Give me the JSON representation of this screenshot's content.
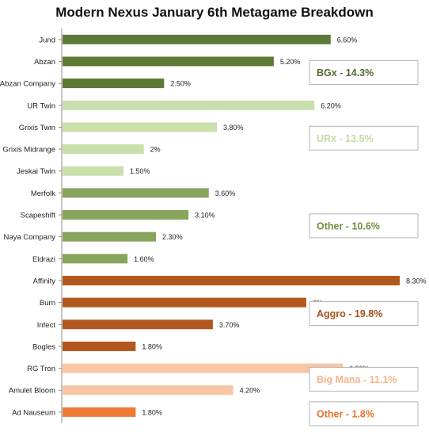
{
  "chart_data": {
    "type": "bar",
    "orientation": "horizontal",
    "title": "Modern Nexus January 6th Metagame Breakdown",
    "xlabel": "",
    "ylabel": "",
    "xlim": [
      0,
      8.3
    ],
    "grid": false,
    "legend": "none",
    "categories": [
      "Jund",
      "Abzan",
      "Abzan Company",
      "UR Twin",
      "Grixis Twin",
      "Grixis Midrange",
      "Jeskai Twin",
      "Merfolk",
      "Scapeshift",
      "Naya Company",
      "Eldrazi",
      "Affinity",
      "Burn",
      "Infect",
      "Bogles",
      "RG Tron",
      "Amulet Bloom",
      "Ad Nauseum"
    ],
    "values": [
      6.6,
      5.2,
      2.5,
      6.2,
      3.8,
      2.0,
      1.5,
      3.6,
      3.1,
      2.3,
      1.6,
      8.3,
      6.0,
      3.7,
      1.8,
      6.9,
      4.2,
      1.8
    ],
    "value_labels": [
      "6.60%",
      "5.20%",
      "2.50%",
      "6.20%",
      "3.80%",
      "2%",
      "1.50%",
      "3.60%",
      "3.10%",
      "2.30%",
      "1.60%",
      "8.30%",
      "6%",
      "3.70%",
      "1.80%",
      "6.90%",
      "4.20%",
      "1.80%"
    ],
    "bar_colors": [
      "#5c7a36",
      "#5c7a36",
      "#5c7a36",
      "#c9dfac",
      "#c9dfac",
      "#c9dfac",
      "#c9dfac",
      "#87a55c",
      "#87a55c",
      "#87a55c",
      "#87a55c",
      "#b2571e",
      "#b2571e",
      "#b2571e",
      "#b2571e",
      "#f8c6a4",
      "#f8c6a4",
      "#ee7b36"
    ],
    "groups": [
      {
        "label": "BGx - 14.3%",
        "color": "#4f6a2e",
        "first": 0,
        "last": 2
      },
      {
        "label": "URx - 13.5%",
        "color": "#c3daa5",
        "first": 3,
        "last": 6
      },
      {
        "label": "Other - 10.6%",
        "color": "#6f9140",
        "first": 7,
        "last": 10
      },
      {
        "label": "Aggro - 19.8%",
        "color": "#a84f1a",
        "first": 11,
        "last": 14
      },
      {
        "label": "Big Mana - 11.1%",
        "color": "#f5b48c",
        "first": 15,
        "last": 16
      },
      {
        "label": "Other - 1.8%",
        "color": "#e8712c",
        "first": 17,
        "last": 17
      }
    ]
  }
}
